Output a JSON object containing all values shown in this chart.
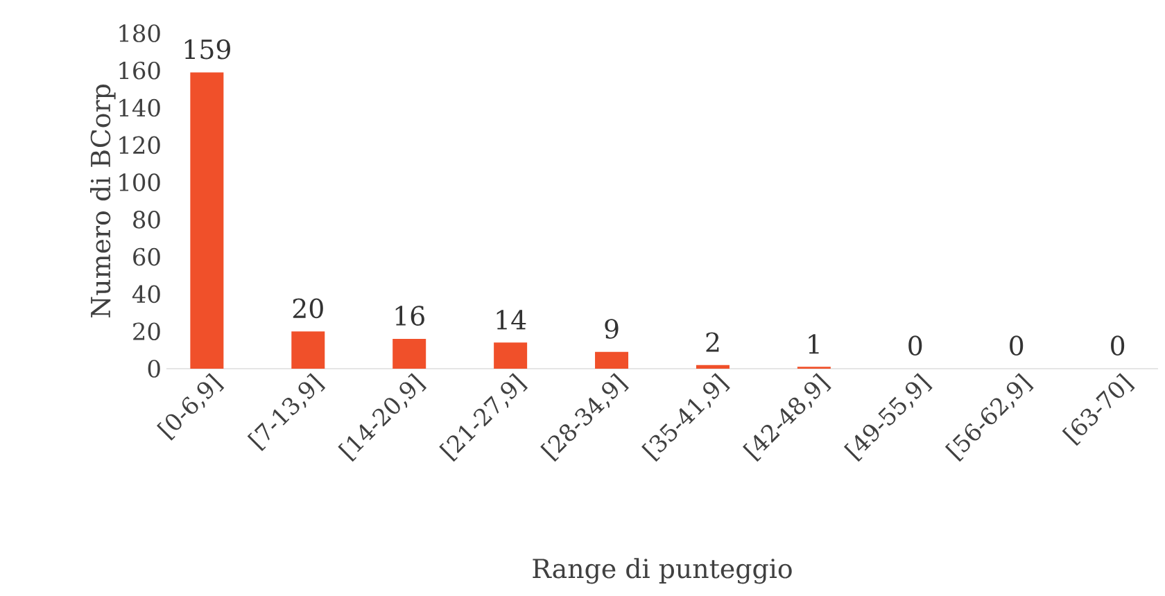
{
  "chart_data": {
    "type": "bar",
    "xlabel": "Range di punteggio",
    "ylabel": "Numero di BCorp",
    "categories": [
      "[0-6,9]",
      "[7-13,9]",
      "[14-20,9]",
      "[21-27,9]",
      "[28-34,9]",
      "[35-41,9]",
      "[42-48,9]",
      "[49-55,9]",
      "[56-62,9]",
      "[63-70]"
    ],
    "values": [
      159,
      20,
      16,
      14,
      9,
      2,
      1,
      0,
      0,
      0
    ],
    "color": "#f0502a",
    "ylim": [
      0,
      180
    ],
    "yticks": [
      0,
      20,
      40,
      60,
      80,
      100,
      120,
      140,
      160,
      180
    ],
    "data_labels": true
  }
}
